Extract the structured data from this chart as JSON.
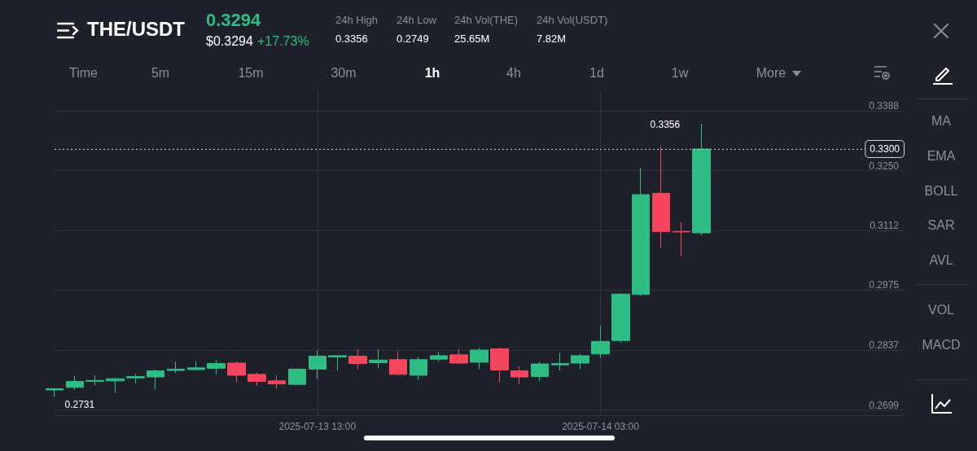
{
  "chart_data": {
    "type": "candlestick",
    "title": "THE/USDT",
    "annotations": [
      "0.3294",
      "$0.3294",
      "+17.73%",
      "24h High",
      "0.3356",
      "24h Low",
      "0.2749",
      "24h Vol(THE)",
      "25.65M",
      "24h Vol(USDT)",
      "7.82M",
      "Time",
      "5m",
      "15m",
      "30m",
      "1h",
      "4h",
      "1d",
      "1w",
      "More",
      "MA",
      "EMA",
      "BOLL",
      "SAR",
      "AVL",
      "VOL",
      "MACD",
      {
        "text": "0.3356",
        "x": "2025-07-14T08:00",
        "y": 0.3356
      },
      {
        "text": "0.2731",
        "x": "2025-07-13T00:00",
        "y": 0.2731
      }
    ],
    "x": [
      "2025-07-13T00:00",
      "2025-07-13T01:00",
      "2025-07-13T02:00",
      "2025-07-13T03:00",
      "2025-07-13T04:00",
      "2025-07-13T05:00",
      "2025-07-13T06:00",
      "2025-07-13T07:00",
      "2025-07-13T08:00",
      "2025-07-13T09:00",
      "2025-07-13T10:00",
      "2025-07-13T11:00",
      "2025-07-13T12:00",
      "2025-07-13T13:00",
      "2025-07-13T14:00",
      "2025-07-13T15:00",
      "2025-07-13T16:00",
      "2025-07-13T17:00",
      "2025-07-13T18:00",
      "2025-07-13T19:00",
      "2025-07-13T20:00",
      "2025-07-13T21:00",
      "2025-07-13T22:00",
      "2025-07-13T23:00",
      "2025-07-14T00:00",
      "2025-07-14T01:00",
      "2025-07-14T02:00",
      "2025-07-14T03:00",
      "2025-07-14T04:00",
      "2025-07-14T05:00",
      "2025-07-14T06:00",
      "2025-07-14T07:00",
      "2025-07-14T08:00"
    ],
    "ohlc": [
      [
        0.2745,
        0.2749,
        0.2731,
        0.2748
      ],
      [
        0.2751,
        0.2778,
        0.2745,
        0.2765
      ],
      [
        0.2765,
        0.2779,
        0.2756,
        0.2767
      ],
      [
        0.2766,
        0.2772,
        0.2738,
        0.2771
      ],
      [
        0.2773,
        0.2782,
        0.276,
        0.2776
      ],
      [
        0.2775,
        0.2792,
        0.2746,
        0.2789
      ],
      [
        0.279,
        0.281,
        0.2784,
        0.2793
      ],
      [
        0.2792,
        0.2811,
        0.279,
        0.2796
      ],
      [
        0.2795,
        0.2814,
        0.2781,
        0.2806
      ],
      [
        0.2807,
        0.2811,
        0.2763,
        0.2779
      ],
      [
        0.2781,
        0.2785,
        0.2754,
        0.2765
      ],
      [
        0.2766,
        0.2779,
        0.2748,
        0.2759
      ],
      [
        0.2758,
        0.2795,
        0.2757,
        0.2793
      ],
      [
        0.2793,
        0.2836,
        0.2771,
        0.2823
      ],
      [
        0.2821,
        0.2824,
        0.279,
        0.2824
      ],
      [
        0.2823,
        0.2839,
        0.2793,
        0.2806
      ],
      [
        0.2808,
        0.2839,
        0.2795,
        0.2814
      ],
      [
        0.2815,
        0.2834,
        0.2779,
        0.2781
      ],
      [
        0.2779,
        0.2821,
        0.2768,
        0.2815
      ],
      [
        0.2816,
        0.2833,
        0.2811,
        0.2824
      ],
      [
        0.2826,
        0.2839,
        0.2806,
        0.2807
      ],
      [
        0.2809,
        0.2842,
        0.2793,
        0.2837
      ],
      [
        0.284,
        0.2842,
        0.2763,
        0.2791
      ],
      [
        0.2789,
        0.2799,
        0.2758,
        0.2775
      ],
      [
        0.2776,
        0.281,
        0.2766,
        0.2805
      ],
      [
        0.2803,
        0.2831,
        0.279,
        0.2806
      ],
      [
        0.2807,
        0.2828,
        0.2793,
        0.2824
      ],
      [
        0.2828,
        0.2892,
        0.2818,
        0.2857
      ],
      [
        0.2859,
        0.2967,
        0.2854,
        0.2966
      ],
      [
        0.2965,
        0.3257,
        0.2962,
        0.3195
      ],
      [
        0.3198,
        0.3306,
        0.3073,
        0.311
      ],
      [
        0.311,
        0.3131,
        0.3054,
        0.3109
      ],
      [
        0.3107,
        0.3356,
        0.3101,
        0.33
      ]
    ],
    "xlim": [
      "2025-07-13T00:00",
      "2025-07-14T18:00"
    ],
    "xticks": [
      {
        "value": "2025-07-13T13:00",
        "label": "2025-07-13 13:00"
      },
      {
        "value": "2025-07-14T03:00",
        "label": "2025-07-14 03:00"
      }
    ],
    "ylim": [
      0.2687,
      0.3437
    ],
    "yticks": [
      0.2699,
      0.2837,
      0.2975,
      0.3112,
      {
        "value": 0.325,
        "label": "0.3250"
      },
      0.3388
    ],
    "ref_lines": [
      {
        "axis": "y",
        "value": 0.33,
        "label": "0.3300",
        "line_style": "dotted"
      }
    ],
    "grid": true
  }
}
